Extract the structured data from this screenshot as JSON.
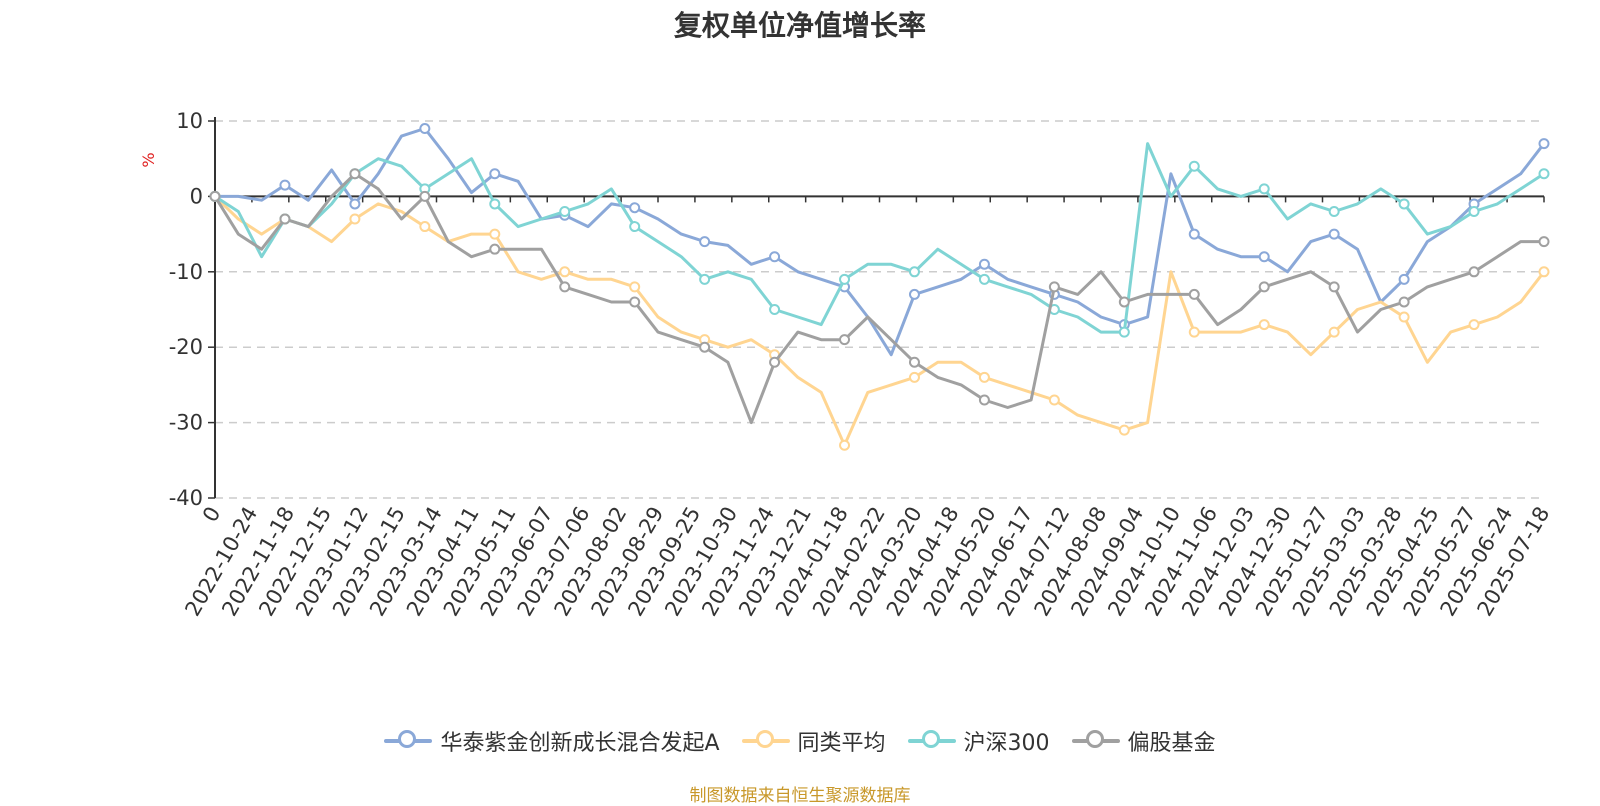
{
  "source_note": "制图数据来自恒生聚源数据库",
  "chart_data": {
    "type": "line",
    "title": "复权单位净值增长率",
    "ylabel": "%",
    "ylim": [
      -40,
      10
    ],
    "yticks": [
      10,
      0,
      -10,
      -20,
      -30,
      -40
    ],
    "grid": true,
    "legend_position": "bottom",
    "x_tick_labels": [
      "0",
      "2022-10-24",
      "2022-11-18",
      "2022-12-15",
      "2023-01-12",
      "2023-02-15",
      "2023-03-14",
      "2023-04-11",
      "2023-05-11",
      "2023-06-07",
      "2023-07-06",
      "2023-08-02",
      "2023-08-29",
      "2023-09-25",
      "2023-10-30",
      "2023-11-24",
      "2023-12-21",
      "2024-01-18",
      "2024-02-22",
      "2024-03-20",
      "2024-04-18",
      "2024-05-20",
      "2024-06-17",
      "2024-07-12",
      "2024-08-08",
      "2024-09-04",
      "2024-10-10",
      "2024-11-06",
      "2024-12-03",
      "2024-12-30",
      "2025-01-27",
      "2025-03-03",
      "2025-03-28",
      "2025-04-25",
      "2025-05-27",
      "2025-06-24",
      "2025-07-18"
    ],
    "series": [
      {
        "name": "华泰紫金创新成长混合发起A",
        "color": "#8aa8d8",
        "values": [
          0,
          0,
          -0.5,
          1.5,
          -0.5,
          3.5,
          -1,
          3,
          8,
          9,
          5,
          0.5,
          3,
          2,
          -3,
          -2.5,
          -4,
          -1,
          -1.5,
          -3,
          -5,
          -6,
          -6.5,
          -9,
          -8,
          -10,
          -11,
          -12,
          -16,
          -21,
          -13,
          -12,
          -11,
          -9,
          -11,
          -12,
          -13,
          -14,
          -16,
          -17,
          -16,
          3,
          -5,
          -7,
          -8,
          -8,
          -10,
          -6,
          -5,
          -7,
          -14,
          -11,
          -6,
          -4,
          -1,
          1,
          3,
          7
        ]
      },
      {
        "name": "同类平均",
        "color": "#ffd591",
        "values": [
          0,
          -3,
          -5,
          -3,
          -4,
          -6,
          -3,
          -1,
          -2,
          -4,
          -6,
          -5,
          -5,
          -10,
          -11,
          -10,
          -11,
          -11,
          -12,
          -16,
          -18,
          -19,
          -20,
          -19,
          -21,
          -24,
          -26,
          -33,
          -26,
          -25,
          -24,
          -22,
          -22,
          -24,
          -25,
          -26,
          -27,
          -29,
          -30,
          -31,
          -30,
          -10,
          -18,
          -18,
          -18,
          -17,
          -18,
          -21,
          -18,
          -15,
          -14,
          -16,
          -22,
          -18,
          -17,
          -16,
          -14,
          -10
        ]
      },
      {
        "name": "沪深300",
        "color": "#7fd4d4",
        "values": [
          0,
          -2,
          -8,
          -3,
          -4,
          -1,
          3,
          5,
          4,
          1,
          3,
          5,
          -1,
          -4,
          -3,
          -2,
          -1,
          1,
          -4,
          -6,
          -8,
          -11,
          -10,
          -11,
          -15,
          -16,
          -17,
          -11,
          -9,
          -9,
          -10,
          -7,
          -9,
          -11,
          -12,
          -13,
          -15,
          -16,
          -18,
          -18,
          7,
          0,
          4,
          1,
          0,
          1,
          -3,
          -1,
          -2,
          -1,
          1,
          -1,
          -5,
          -4,
          -2,
          -1,
          1,
          3
        ]
      },
      {
        "name": "偏股基金",
        "color": "#a0a0a0",
        "values": [
          0,
          -5,
          -7,
          -3,
          -4,
          0,
          3,
          1,
          -3,
          0,
          -6,
          -8,
          -7,
          -7,
          -7,
          -12,
          -13,
          -14,
          -14,
          -18,
          -19,
          -20,
          -22,
          -30,
          -22,
          -18,
          -19,
          -19,
          -16,
          -19,
          -22,
          -24,
          -25,
          -27,
          -28,
          -27,
          -12,
          -13,
          -10,
          -14,
          -13,
          -13,
          -13,
          -17,
          -15,
          -12,
          -11,
          -10,
          -12,
          -18,
          -15,
          -14,
          -12,
          -11,
          -10,
          -8,
          -6,
          -6
        ]
      }
    ]
  }
}
